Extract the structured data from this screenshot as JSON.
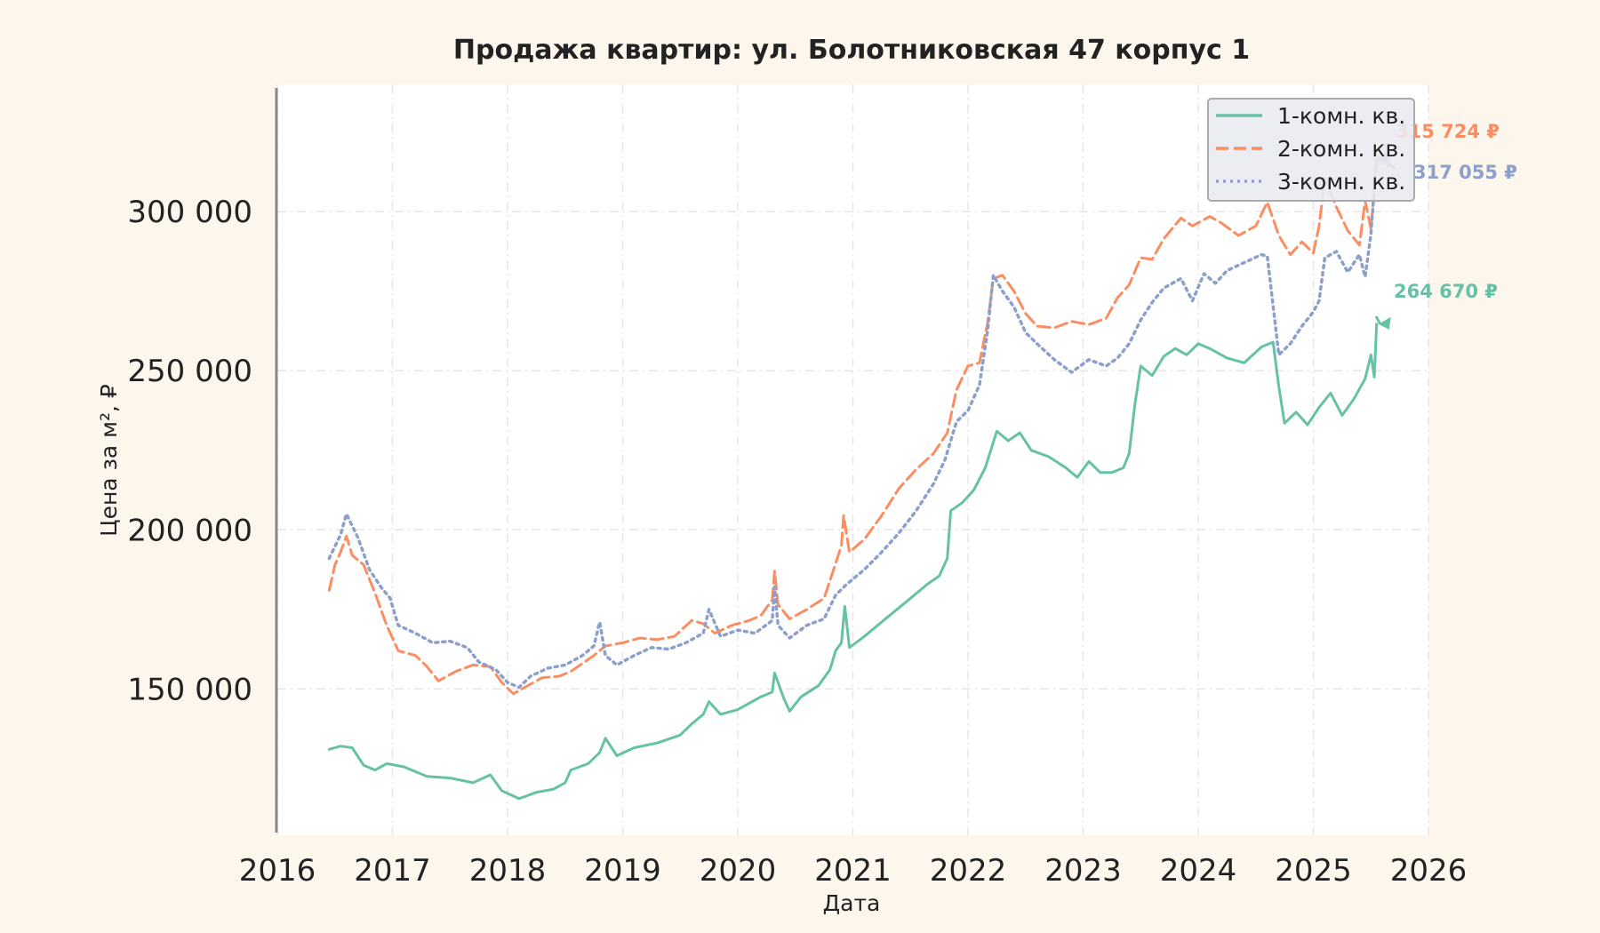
{
  "chart_data": {
    "type": "line",
    "title": "Продажа квартир: ул. Болотниковская 47 корпус 1",
    "xlabel": "Дата",
    "ylabel": "Цена за м², ₽",
    "xlim": [
      2016.0,
      2026.0
    ],
    "ylim": [
      104000,
      340000
    ],
    "x_ticks": [
      "2016",
      "2017",
      "2018",
      "2019",
      "2020",
      "2021",
      "2022",
      "2023",
      "2024",
      "2025",
      "2026"
    ],
    "y_ticks": [
      "150 000",
      "200 000",
      "250 000",
      "300 000"
    ],
    "y_tick_values": [
      150000,
      200000,
      250000,
      300000
    ],
    "grid": true,
    "legend_position": "top-right",
    "series": [
      {
        "name": "1-комн. кв.",
        "color": "#66c2a5",
        "dash": "solid",
        "end_label": "264 670 ₽",
        "points": [
          [
            2016.45,
            131000
          ],
          [
            2016.55,
            132000
          ],
          [
            2016.65,
            131500
          ],
          [
            2016.75,
            126000
          ],
          [
            2016.85,
            124500
          ],
          [
            2016.95,
            126500
          ],
          [
            2017.1,
            125500
          ],
          [
            2017.3,
            122500
          ],
          [
            2017.5,
            122000
          ],
          [
            2017.7,
            120500
          ],
          [
            2017.85,
            123000
          ],
          [
            2017.95,
            118000
          ],
          [
            2018.1,
            115500
          ],
          [
            2018.25,
            117500
          ],
          [
            2018.4,
            118500
          ],
          [
            2018.5,
            120500
          ],
          [
            2018.55,
            124500
          ],
          [
            2018.7,
            126500
          ],
          [
            2018.8,
            130000
          ],
          [
            2018.85,
            134500
          ],
          [
            2018.95,
            129000
          ],
          [
            2019.1,
            131500
          ],
          [
            2019.3,
            133000
          ],
          [
            2019.5,
            135500
          ],
          [
            2019.6,
            139000
          ],
          [
            2019.7,
            142000
          ],
          [
            2019.75,
            146000
          ],
          [
            2019.85,
            142000
          ],
          [
            2020.0,
            143500
          ],
          [
            2020.1,
            145500
          ],
          [
            2020.2,
            147500
          ],
          [
            2020.3,
            149000
          ],
          [
            2020.32,
            155000
          ],
          [
            2020.4,
            147000
          ],
          [
            2020.45,
            143000
          ],
          [
            2020.55,
            147500
          ],
          [
            2020.7,
            151000
          ],
          [
            2020.8,
            156000
          ],
          [
            2020.85,
            162000
          ],
          [
            2020.9,
            164500
          ],
          [
            2020.93,
            176000
          ],
          [
            2020.97,
            163000
          ],
          [
            2021.1,
            166500
          ],
          [
            2021.3,
            172500
          ],
          [
            2021.5,
            178500
          ],
          [
            2021.65,
            183000
          ],
          [
            2021.75,
            185500
          ],
          [
            2021.82,
            191000
          ],
          [
            2021.85,
            206000
          ],
          [
            2021.95,
            208500
          ],
          [
            2022.05,
            212500
          ],
          [
            2022.15,
            219500
          ],
          [
            2022.25,
            231000
          ],
          [
            2022.35,
            228000
          ],
          [
            2022.45,
            230500
          ],
          [
            2022.55,
            225000
          ],
          [
            2022.7,
            223000
          ],
          [
            2022.85,
            219500
          ],
          [
            2022.95,
            216500
          ],
          [
            2023.05,
            221500
          ],
          [
            2023.15,
            218000
          ],
          [
            2023.25,
            218000
          ],
          [
            2023.35,
            219500
          ],
          [
            2023.4,
            224000
          ],
          [
            2023.45,
            239500
          ],
          [
            2023.5,
            251500
          ],
          [
            2023.6,
            248500
          ],
          [
            2023.7,
            254500
          ],
          [
            2023.8,
            257000
          ],
          [
            2023.9,
            255000
          ],
          [
            2024.0,
            258500
          ],
          [
            2024.1,
            257000
          ],
          [
            2024.25,
            254000
          ],
          [
            2024.4,
            252500
          ],
          [
            2024.55,
            257500
          ],
          [
            2024.65,
            259000
          ],
          [
            2024.7,
            245000
          ],
          [
            2024.75,
            233500
          ],
          [
            2024.85,
            237000
          ],
          [
            2024.95,
            233000
          ],
          [
            2025.05,
            238500
          ],
          [
            2025.15,
            243000
          ],
          [
            2025.25,
            236000
          ],
          [
            2025.35,
            241000
          ],
          [
            2025.45,
            247500
          ],
          [
            2025.5,
            255000
          ],
          [
            2025.53,
            248000
          ],
          [
            2025.55,
            264670
          ]
        ]
      },
      {
        "name": "2-комн. кв.",
        "color": "#fc8d62",
        "dash": "dashed",
        "end_label": "315 724 ₽",
        "points": [
          [
            2016.45,
            181000
          ],
          [
            2016.5,
            189000
          ],
          [
            2016.55,
            193000
          ],
          [
            2016.6,
            198000
          ],
          [
            2016.65,
            192000
          ],
          [
            2016.75,
            189000
          ],
          [
            2016.85,
            180000
          ],
          [
            2016.95,
            170000
          ],
          [
            2017.05,
            162000
          ],
          [
            2017.2,
            160500
          ],
          [
            2017.3,
            157000
          ],
          [
            2017.4,
            152500
          ],
          [
            2017.55,
            155500
          ],
          [
            2017.7,
            157500
          ],
          [
            2017.85,
            157000
          ],
          [
            2017.95,
            152000
          ],
          [
            2018.05,
            148500
          ],
          [
            2018.15,
            150500
          ],
          [
            2018.3,
            153500
          ],
          [
            2018.45,
            154000
          ],
          [
            2018.55,
            155500
          ],
          [
            2018.65,
            158000
          ],
          [
            2018.75,
            160500
          ],
          [
            2018.85,
            163500
          ],
          [
            2019.0,
            164500
          ],
          [
            2019.15,
            166000
          ],
          [
            2019.3,
            165500
          ],
          [
            2019.45,
            166500
          ],
          [
            2019.6,
            171500
          ],
          [
            2019.7,
            170500
          ],
          [
            2019.8,
            167500
          ],
          [
            2019.95,
            170000
          ],
          [
            2020.1,
            171500
          ],
          [
            2020.2,
            173000
          ],
          [
            2020.3,
            178000
          ],
          [
            2020.32,
            187000
          ],
          [
            2020.35,
            176500
          ],
          [
            2020.45,
            172000
          ],
          [
            2020.6,
            175000
          ],
          [
            2020.75,
            178500
          ],
          [
            2020.85,
            189500
          ],
          [
            2020.9,
            195000
          ],
          [
            2020.92,
            204500
          ],
          [
            2020.97,
            193000
          ],
          [
            2021.1,
            197000
          ],
          [
            2021.25,
            204500
          ],
          [
            2021.4,
            213000
          ],
          [
            2021.55,
            219000
          ],
          [
            2021.7,
            224000
          ],
          [
            2021.82,
            230500
          ],
          [
            2021.9,
            244000
          ],
          [
            2022.0,
            251500
          ],
          [
            2022.1,
            252500
          ],
          [
            2022.17,
            265000
          ],
          [
            2022.22,
            279000
          ],
          [
            2022.3,
            280000
          ],
          [
            2022.4,
            275000
          ],
          [
            2022.5,
            268000
          ],
          [
            2022.6,
            264000
          ],
          [
            2022.75,
            263500
          ],
          [
            2022.9,
            265500
          ],
          [
            2023.05,
            264500
          ],
          [
            2023.2,
            266500
          ],
          [
            2023.3,
            273000
          ],
          [
            2023.4,
            277000
          ],
          [
            2023.5,
            285500
          ],
          [
            2023.6,
            285000
          ],
          [
            2023.7,
            291500
          ],
          [
            2023.85,
            298000
          ],
          [
            2023.95,
            295500
          ],
          [
            2024.1,
            298500
          ],
          [
            2024.2,
            296500
          ],
          [
            2024.35,
            292500
          ],
          [
            2024.5,
            295500
          ],
          [
            2024.6,
            303000
          ],
          [
            2024.7,
            292500
          ],
          [
            2024.8,
            286500
          ],
          [
            2024.9,
            290500
          ],
          [
            2025.0,
            287000
          ],
          [
            2025.05,
            295500
          ],
          [
            2025.1,
            310500
          ],
          [
            2025.2,
            301500
          ],
          [
            2025.3,
            294000
          ],
          [
            2025.4,
            289500
          ],
          [
            2025.45,
            303500
          ],
          [
            2025.5,
            294500
          ],
          [
            2025.55,
            315724
          ]
        ]
      },
      {
        "name": "3-комн. кв.",
        "color": "#8da0cb",
        "dash": "dotted",
        "end_label": "317 055 ₽",
        "points": [
          [
            2016.45,
            191000
          ],
          [
            2016.55,
            198500
          ],
          [
            2016.6,
            205000
          ],
          [
            2016.7,
            197500
          ],
          [
            2016.8,
            187500
          ],
          [
            2016.9,
            182000
          ],
          [
            2016.98,
            178500
          ],
          [
            2017.05,
            170000
          ],
          [
            2017.2,
            167500
          ],
          [
            2017.35,
            164500
          ],
          [
            2017.5,
            165000
          ],
          [
            2017.65,
            163000
          ],
          [
            2017.75,
            158500
          ],
          [
            2017.9,
            156000
          ],
          [
            2018.0,
            152000
          ],
          [
            2018.1,
            150500
          ],
          [
            2018.2,
            154000
          ],
          [
            2018.35,
            156500
          ],
          [
            2018.5,
            157500
          ],
          [
            2018.65,
            160500
          ],
          [
            2018.75,
            163500
          ],
          [
            2018.8,
            171000
          ],
          [
            2018.85,
            160500
          ],
          [
            2018.95,
            157500
          ],
          [
            2019.1,
            160500
          ],
          [
            2019.25,
            163000
          ],
          [
            2019.4,
            162500
          ],
          [
            2019.55,
            164500
          ],
          [
            2019.7,
            167500
          ],
          [
            2019.75,
            175000
          ],
          [
            2019.85,
            166500
          ],
          [
            2020.0,
            168500
          ],
          [
            2020.15,
            167500
          ],
          [
            2020.3,
            171500
          ],
          [
            2020.32,
            182000
          ],
          [
            2020.35,
            170000
          ],
          [
            2020.45,
            166000
          ],
          [
            2020.6,
            170000
          ],
          [
            2020.75,
            172000
          ],
          [
            2020.85,
            179500
          ],
          [
            2020.95,
            183000
          ],
          [
            2021.1,
            187500
          ],
          [
            2021.25,
            193000
          ],
          [
            2021.4,
            199000
          ],
          [
            2021.55,
            206000
          ],
          [
            2021.7,
            214500
          ],
          [
            2021.8,
            222000
          ],
          [
            2021.9,
            234000
          ],
          [
            2022.0,
            237500
          ],
          [
            2022.1,
            245500
          ],
          [
            2022.17,
            262500
          ],
          [
            2022.22,
            280000
          ],
          [
            2022.3,
            275000
          ],
          [
            2022.4,
            270000
          ],
          [
            2022.5,
            262000
          ],
          [
            2022.6,
            258500
          ],
          [
            2022.75,
            253500
          ],
          [
            2022.9,
            249500
          ],
          [
            2023.05,
            253500
          ],
          [
            2023.2,
            251500
          ],
          [
            2023.3,
            254000
          ],
          [
            2023.4,
            258500
          ],
          [
            2023.5,
            266000
          ],
          [
            2023.6,
            271500
          ],
          [
            2023.7,
            276000
          ],
          [
            2023.85,
            279000
          ],
          [
            2023.95,
            272000
          ],
          [
            2024.05,
            280500
          ],
          [
            2024.15,
            277500
          ],
          [
            2024.25,
            281500
          ],
          [
            2024.4,
            284000
          ],
          [
            2024.55,
            286500
          ],
          [
            2024.6,
            286000
          ],
          [
            2024.7,
            255000
          ],
          [
            2024.8,
            258500
          ],
          [
            2024.9,
            264000
          ],
          [
            2025.0,
            268500
          ],
          [
            2025.05,
            272000
          ],
          [
            2025.1,
            285500
          ],
          [
            2025.2,
            287500
          ],
          [
            2025.3,
            281000
          ],
          [
            2025.4,
            286500
          ],
          [
            2025.45,
            279500
          ],
          [
            2025.5,
            293000
          ],
          [
            2025.55,
            317055
          ]
        ]
      }
    ]
  }
}
